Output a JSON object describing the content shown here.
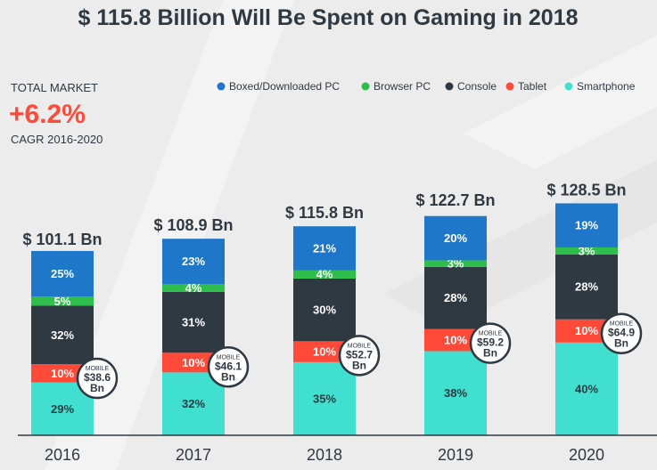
{
  "chart_data": {
    "type": "bar",
    "title": "$ 115.8 Billion Will Be Spent on Gaming in 2018",
    "categories": [
      "2016",
      "2017",
      "2018",
      "2019",
      "2020"
    ],
    "totals_label": [
      "$ 101.1 Bn",
      "$ 108.9 Bn",
      "$ 115.8 Bn",
      "$ 122.7 Bn",
      "$ 128.5 Bn"
    ],
    "totals": [
      101.1,
      108.9,
      115.8,
      122.7,
      128.5
    ],
    "mobile_label": "MOBILE",
    "mobile_values_label": [
      "$38.6 Bn",
      "$46.1 Bn",
      "$52.7 Bn",
      "$59.2 Bn",
      "$64.9 Bn"
    ],
    "mobile_values": [
      38.6,
      46.1,
      52.7,
      59.2,
      64.9
    ],
    "series": [
      {
        "name": "Smartphone",
        "color": "#40dfcf",
        "values": [
          29,
          32,
          35,
          38,
          40
        ]
      },
      {
        "name": "Tablet",
        "color": "#ff4a3a",
        "values": [
          10,
          10,
          10,
          10,
          10
        ]
      },
      {
        "name": "Console",
        "color": "#2f3942",
        "values": [
          32,
          31,
          30,
          28,
          28
        ]
      },
      {
        "name": "Browser PC",
        "color": "#2fbd4b",
        "values": [
          5,
          4,
          4,
          3,
          3
        ]
      },
      {
        "name": "Boxed/Downloaded PC",
        "color": "#1f77c9",
        "values": [
          25,
          23,
          21,
          20,
          19
        ]
      }
    ],
    "legend_order": [
      "Boxed/Downloaded PC",
      "Browser PC",
      "Console",
      "Tablet",
      "Smartphone"
    ],
    "legend_placement": "top-right",
    "cagr": {
      "label_top": "TOTAL MARKET",
      "value": "+6.2%",
      "label_bottom": "CAGR 2016-2020"
    },
    "grid": false
  }
}
